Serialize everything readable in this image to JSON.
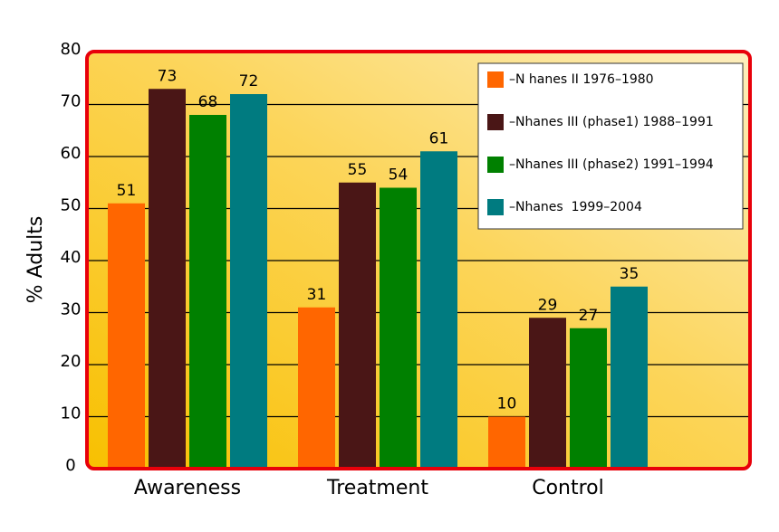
{
  "chart_data": {
    "type": "bar",
    "y_label": "% Adults",
    "categories": [
      "Awareness",
      "Treatment",
      "Control"
    ],
    "series": [
      {
        "name": "–N hanes II 1976–1980",
        "color": "#ff6600",
        "values": [
          51,
          31,
          10
        ]
      },
      {
        "name": "–Nhanes III (phase1) 1988–1991",
        "color": "#4a1616",
        "values": [
          73,
          55,
          29
        ]
      },
      {
        "name": "–Nhanes III (phase2) 1991–1994",
        "color": "#008000",
        "values": [
          68,
          54,
          27
        ]
      },
      {
        "name": "–Nhanes  1999–2004",
        "color": "#007b80",
        "values": [
          72,
          61,
          35
        ]
      }
    ],
    "ylim": [
      0,
      80
    ],
    "yticks": [
      0,
      10,
      20,
      30,
      40,
      50,
      60,
      70,
      80
    ],
    "grid": true,
    "legend": "top-right"
  }
}
